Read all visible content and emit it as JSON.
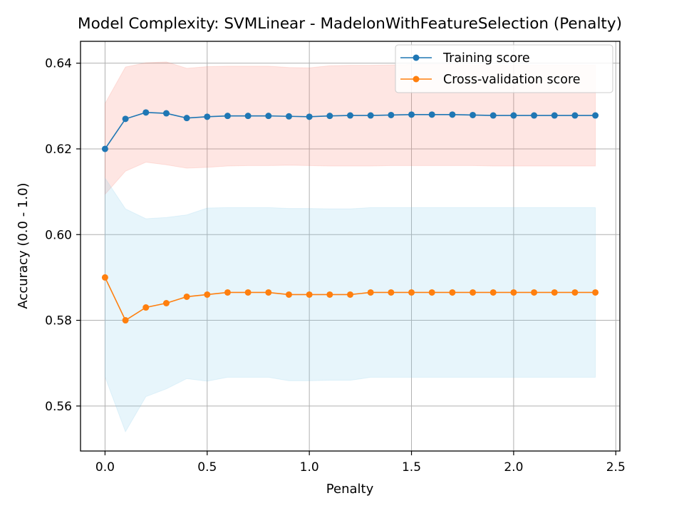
{
  "chart_data": {
    "type": "line",
    "title": "Model Complexity: SVMLinear - MadelonWithFeatureSelection (Penalty)",
    "xlabel": "Penalty",
    "ylabel": "Accuracy (0.0 - 1.0)",
    "xlim": [
      -0.12,
      2.52
    ],
    "ylim": [
      0.5495,
      0.6451
    ],
    "xticks": [
      0.0,
      0.5,
      1.0,
      1.5,
      2.0,
      2.5
    ],
    "xtick_labels": [
      "0.0",
      "0.5",
      "1.0",
      "1.5",
      "2.0",
      "2.5"
    ],
    "yticks": [
      0.56,
      0.58,
      0.6,
      0.62,
      0.64
    ],
    "ytick_labels": [
      "0.56",
      "0.58",
      "0.60",
      "0.62",
      "0.64"
    ],
    "grid": true,
    "legend_position": "top-right",
    "x": [
      0.0,
      0.1,
      0.2,
      0.3,
      0.4,
      0.5,
      0.6,
      0.7,
      0.8,
      0.9,
      1.0,
      1.1,
      1.2,
      1.3,
      1.4,
      1.5,
      1.6,
      1.7,
      1.8,
      1.9,
      2.0,
      2.1,
      2.2,
      2.3,
      2.4
    ],
    "series": [
      {
        "name": "Training score",
        "color": "#1f77b4",
        "band_color": "#fa8072",
        "values": [
          0.62,
          0.627,
          0.6285,
          0.6283,
          0.6272,
          0.6275,
          0.6277,
          0.6277,
          0.6277,
          0.6276,
          0.6275,
          0.6277,
          0.6278,
          0.6278,
          0.6279,
          0.628,
          0.628,
          0.628,
          0.6279,
          0.6278,
          0.6278,
          0.6278,
          0.6278,
          0.6278,
          0.6278
        ],
        "upper": [
          0.6306,
          0.6391,
          0.6401,
          0.6403,
          0.6388,
          0.6392,
          0.6393,
          0.6393,
          0.6393,
          0.639,
          0.6389,
          0.6394,
          0.6395,
          0.6395,
          0.6396,
          0.6397,
          0.6397,
          0.6397,
          0.6396,
          0.6396,
          0.6396,
          0.6396,
          0.6396,
          0.6396,
          0.6396
        ],
        "lower": [
          0.6094,
          0.6148,
          0.6169,
          0.6163,
          0.6155,
          0.6157,
          0.616,
          0.6161,
          0.6161,
          0.6162,
          0.6161,
          0.616,
          0.616,
          0.616,
          0.6161,
          0.6161,
          0.6161,
          0.6161,
          0.6161,
          0.616,
          0.616,
          0.616,
          0.616,
          0.616,
          0.616
        ]
      },
      {
        "name": "Cross-validation score",
        "color": "#ff7f0e",
        "band_color": "#87ceeb",
        "values": [
          0.59,
          0.58,
          0.583,
          0.584,
          0.5855,
          0.586,
          0.5865,
          0.5865,
          0.5865,
          0.586,
          0.586,
          0.586,
          0.586,
          0.5865,
          0.5865,
          0.5865,
          0.5865,
          0.5865,
          0.5865,
          0.5865,
          0.5865,
          0.5865,
          0.5865,
          0.5865,
          0.5865
        ],
        "upper": [
          0.6132,
          0.606,
          0.6037,
          0.604,
          0.6046,
          0.6062,
          0.6063,
          0.6063,
          0.6063,
          0.6061,
          0.6061,
          0.606,
          0.606,
          0.6063,
          0.6063,
          0.6063,
          0.6063,
          0.6063,
          0.6063,
          0.6063,
          0.6063,
          0.6063,
          0.6063,
          0.6063,
          0.6063
        ],
        "lower": [
          0.5668,
          0.554,
          0.5622,
          0.564,
          0.5664,
          0.5658,
          0.5667,
          0.5667,
          0.5667,
          0.5659,
          0.5659,
          0.566,
          0.566,
          0.5667,
          0.5667,
          0.5667,
          0.5667,
          0.5667,
          0.5667,
          0.5667,
          0.5667,
          0.5667,
          0.5667,
          0.5667,
          0.5667
        ]
      }
    ]
  }
}
